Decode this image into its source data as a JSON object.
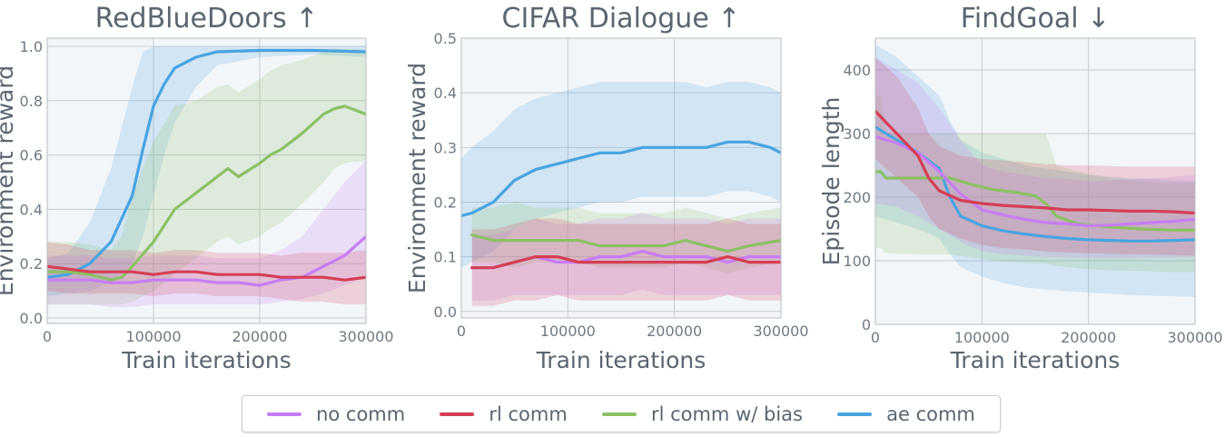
{
  "legend": {
    "items": [
      {
        "label": "no comm",
        "color": "#c77df3"
      },
      {
        "label": "rl comm",
        "color": "#d43f55"
      },
      {
        "label": "rl comm w/ bias",
        "color": "#8cc065"
      },
      {
        "label": "ae comm",
        "color": "#4aa3e0"
      }
    ]
  },
  "chart_data": [
    {
      "type": "line",
      "title": "RedBlueDoors ↑",
      "xlabel": "Train iterations",
      "ylabel": "Environment reward",
      "xlim": [
        0,
        300000
      ],
      "ylim": [
        -0.02,
        1.03
      ],
      "xticks": [
        0,
        100000,
        200000,
        300000
      ],
      "yticks": [
        0.0,
        0.2,
        0.4,
        0.6,
        0.8,
        1.0
      ],
      "ytick_labels": [
        "0.0",
        "0.2",
        "0.4",
        "0.6",
        "0.8",
        "1.0"
      ],
      "grid": true,
      "series": [
        {
          "name": "no comm",
          "color": "#c77df3",
          "x": [
            0,
            20000,
            40000,
            60000,
            80000,
            100000,
            120000,
            140000,
            160000,
            180000,
            200000,
            220000,
            240000,
            260000,
            280000,
            300000
          ],
          "y": [
            0.14,
            0.14,
            0.14,
            0.13,
            0.13,
            0.14,
            0.14,
            0.14,
            0.13,
            0.13,
            0.12,
            0.14,
            0.15,
            0.19,
            0.23,
            0.3
          ],
          "lower": [
            0.05,
            0.05,
            0.05,
            0.04,
            0.04,
            0.05,
            0.05,
            0.05,
            0.05,
            0.05,
            0.05,
            0.06,
            0.07,
            0.09,
            0.12,
            0.15
          ],
          "upper": [
            0.23,
            0.23,
            0.23,
            0.22,
            0.22,
            0.23,
            0.23,
            0.23,
            0.22,
            0.22,
            0.22,
            0.25,
            0.3,
            0.4,
            0.5,
            0.58
          ]
        },
        {
          "name": "rl comm",
          "color": "#d43f55",
          "x": [
            0,
            20000,
            40000,
            60000,
            80000,
            100000,
            120000,
            140000,
            160000,
            180000,
            200000,
            220000,
            240000,
            260000,
            280000,
            300000
          ],
          "y": [
            0.19,
            0.18,
            0.17,
            0.17,
            0.17,
            0.16,
            0.17,
            0.17,
            0.16,
            0.16,
            0.16,
            0.15,
            0.15,
            0.15,
            0.14,
            0.15
          ],
          "lower": [
            0.1,
            0.09,
            0.09,
            0.09,
            0.09,
            0.08,
            0.09,
            0.09,
            0.08,
            0.08,
            0.08,
            0.07,
            0.06,
            0.06,
            0.05,
            0.05
          ],
          "upper": [
            0.28,
            0.27,
            0.25,
            0.25,
            0.25,
            0.24,
            0.25,
            0.25,
            0.24,
            0.24,
            0.24,
            0.23,
            0.24,
            0.24,
            0.24,
            0.25
          ]
        },
        {
          "name": "rl comm w/ bias",
          "color": "#8cc065",
          "x": [
            0,
            20000,
            40000,
            60000,
            70000,
            80000,
            100000,
            120000,
            140000,
            160000,
            170000,
            180000,
            200000,
            210000,
            220000,
            240000,
            260000,
            270000,
            280000,
            300000
          ],
          "y": [
            0.17,
            0.17,
            0.16,
            0.14,
            0.15,
            0.19,
            0.28,
            0.4,
            0.46,
            0.52,
            0.55,
            0.52,
            0.57,
            0.6,
            0.62,
            0.68,
            0.75,
            0.77,
            0.78,
            0.75
          ],
          "lower": [
            0.05,
            0.05,
            0.05,
            0.05,
            0.05,
            0.06,
            0.1,
            0.16,
            0.22,
            0.28,
            0.3,
            0.27,
            0.3,
            0.33,
            0.35,
            0.42,
            0.5,
            0.55,
            0.57,
            0.58
          ],
          "upper": [
            0.28,
            0.28,
            0.27,
            0.25,
            0.3,
            0.45,
            0.65,
            0.78,
            0.8,
            0.85,
            0.86,
            0.83,
            0.88,
            0.91,
            0.93,
            0.95,
            0.98,
            0.99,
            0.99,
            0.99
          ]
        },
        {
          "name": "ae comm",
          "color": "#4aa3e0",
          "x": [
            0,
            20000,
            40000,
            60000,
            80000,
            90000,
            100000,
            110000,
            120000,
            140000,
            160000,
            200000,
            250000,
            300000
          ],
          "y": [
            0.15,
            0.16,
            0.2,
            0.28,
            0.45,
            0.62,
            0.78,
            0.86,
            0.92,
            0.96,
            0.98,
            0.985,
            0.985,
            0.98
          ],
          "lower": [
            0.08,
            0.09,
            0.1,
            0.13,
            0.2,
            0.3,
            0.45,
            0.6,
            0.72,
            0.85,
            0.93,
            0.96,
            0.97,
            0.96
          ],
          "upper": [
            0.22,
            0.24,
            0.35,
            0.55,
            0.85,
            0.98,
            1.0,
            1.0,
            1.0,
            1.0,
            1.0,
            1.0,
            1.0,
            1.0
          ]
        }
      ]
    },
    {
      "type": "line",
      "title": "CIFAR Dialogue ↑",
      "xlabel": "Train iterations",
      "ylabel": "Environment reward",
      "xlim": [
        0,
        300000
      ],
      "ylim": [
        -0.012,
        0.5
      ],
      "xticks": [
        0,
        100000,
        200000,
        300000
      ],
      "yticks": [
        0.0,
        0.1,
        0.2,
        0.3,
        0.4,
        0.5
      ],
      "ytick_labels": [
        "0.0",
        "0.1",
        "0.2",
        "0.3",
        "0.4",
        "0.5"
      ],
      "grid": true,
      "series": [
        {
          "name": "no comm",
          "color": "#c77df3",
          "x": [
            10000,
            30000,
            50000,
            70000,
            90000,
            110000,
            130000,
            150000,
            170000,
            190000,
            210000,
            230000,
            250000,
            270000,
            300000
          ],
          "y": [
            0.08,
            0.08,
            0.09,
            0.1,
            0.09,
            0.09,
            0.1,
            0.1,
            0.11,
            0.1,
            0.1,
            0.1,
            0.09,
            0.1,
            0.1
          ],
          "lower": [
            0.02,
            0.02,
            0.03,
            0.03,
            0.03,
            0.03,
            0.03,
            0.03,
            0.04,
            0.03,
            0.03,
            0.03,
            0.03,
            0.03,
            0.03
          ],
          "upper": [
            0.14,
            0.14,
            0.15,
            0.17,
            0.16,
            0.16,
            0.17,
            0.17,
            0.18,
            0.17,
            0.17,
            0.17,
            0.16,
            0.17,
            0.17
          ]
        },
        {
          "name": "rl comm",
          "color": "#d43f55",
          "x": [
            10000,
            30000,
            50000,
            70000,
            90000,
            110000,
            130000,
            150000,
            170000,
            190000,
            210000,
            230000,
            250000,
            270000,
            300000
          ],
          "y": [
            0.08,
            0.08,
            0.09,
            0.1,
            0.1,
            0.09,
            0.09,
            0.09,
            0.09,
            0.09,
            0.09,
            0.09,
            0.1,
            0.09,
            0.09
          ],
          "lower": [
            0.01,
            0.01,
            0.02,
            0.02,
            0.03,
            0.02,
            0.02,
            0.02,
            0.02,
            0.02,
            0.02,
            0.02,
            0.03,
            0.02,
            0.02
          ],
          "upper": [
            0.15,
            0.15,
            0.16,
            0.17,
            0.17,
            0.16,
            0.16,
            0.16,
            0.16,
            0.16,
            0.16,
            0.16,
            0.17,
            0.16,
            0.16
          ]
        },
        {
          "name": "rl comm w/ bias",
          "color": "#8cc065",
          "x": [
            10000,
            30000,
            50000,
            70000,
            90000,
            110000,
            130000,
            150000,
            170000,
            190000,
            210000,
            230000,
            250000,
            270000,
            300000
          ],
          "y": [
            0.14,
            0.13,
            0.13,
            0.13,
            0.13,
            0.13,
            0.12,
            0.12,
            0.12,
            0.12,
            0.13,
            0.12,
            0.11,
            0.12,
            0.13
          ],
          "lower": [
            0.09,
            0.09,
            0.08,
            0.09,
            0.09,
            0.09,
            0.08,
            0.08,
            0.08,
            0.08,
            0.09,
            0.08,
            0.07,
            0.08,
            0.09
          ],
          "upper": [
            0.19,
            0.19,
            0.2,
            0.19,
            0.19,
            0.19,
            0.18,
            0.18,
            0.18,
            0.18,
            0.19,
            0.18,
            0.17,
            0.18,
            0.19
          ]
        },
        {
          "name": "ae comm",
          "color": "#4aa3e0",
          "x": [
            0,
            10000,
            30000,
            50000,
            70000,
            90000,
            110000,
            130000,
            150000,
            170000,
            190000,
            210000,
            230000,
            250000,
            270000,
            290000,
            300000
          ],
          "y": [
            0.175,
            0.18,
            0.2,
            0.24,
            0.26,
            0.27,
            0.28,
            0.29,
            0.29,
            0.3,
            0.3,
            0.3,
            0.3,
            0.31,
            0.31,
            0.3,
            0.29
          ],
          "lower": [
            0.08,
            0.09,
            0.11,
            0.15,
            0.17,
            0.18,
            0.19,
            0.2,
            0.2,
            0.21,
            0.21,
            0.21,
            0.21,
            0.22,
            0.22,
            0.21,
            0.2
          ],
          "upper": [
            0.28,
            0.3,
            0.33,
            0.37,
            0.39,
            0.4,
            0.41,
            0.42,
            0.42,
            0.42,
            0.42,
            0.42,
            0.41,
            0.42,
            0.42,
            0.41,
            0.4
          ]
        }
      ]
    },
    {
      "type": "line",
      "title": "FindGoal ↓",
      "xlabel": "Train iterations",
      "ylabel": "Episode length",
      "xlim": [
        0,
        300000
      ],
      "ylim": [
        0,
        450
      ],
      "xticks": [
        0,
        100000,
        200000,
        300000
      ],
      "yticks": [
        0,
        100,
        200,
        300,
        400
      ],
      "ytick_labels": [
        "0",
        "100",
        "200",
        "300",
        "400"
      ],
      "grid": true,
      "series": [
        {
          "name": "no comm",
          "color": "#c77df3",
          "x": [
            0,
            20000,
            40000,
            60000,
            80000,
            100000,
            120000,
            140000,
            160000,
            180000,
            200000,
            220000,
            240000,
            260000,
            280000,
            300000
          ],
          "y": [
            295,
            285,
            270,
            240,
            205,
            180,
            172,
            165,
            160,
            158,
            155,
            156,
            158,
            160,
            162,
            165
          ],
          "lower": [
            190,
            185,
            170,
            150,
            130,
            115,
            110,
            108,
            106,
            105,
            104,
            104,
            104,
            105,
            105,
            106
          ],
          "upper": [
            420,
            400,
            380,
            340,
            290,
            250,
            240,
            235,
            230,
            228,
            225,
            226,
            228,
            230,
            232,
            235
          ]
        },
        {
          "name": "rl comm",
          "color": "#d43f55",
          "x": [
            0,
            20000,
            40000,
            50000,
            60000,
            80000,
            100000,
            120000,
            140000,
            160000,
            180000,
            200000,
            220000,
            240000,
            260000,
            280000,
            300000
          ],
          "y": [
            335,
            300,
            265,
            230,
            210,
            195,
            190,
            187,
            185,
            183,
            180,
            180,
            179,
            178,
            178,
            177,
            175
          ],
          "lower": [
            260,
            230,
            200,
            170,
            150,
            135,
            125,
            120,
            118,
            115,
            113,
            112,
            111,
            110,
            110,
            109,
            108
          ],
          "upper": [
            420,
            390,
            340,
            300,
            280,
            265,
            260,
            258,
            255,
            252,
            250,
            250,
            249,
            248,
            248,
            248,
            248
          ]
        },
        {
          "name": "rl comm w/ bias",
          "color": "#8cc065",
          "x": [
            0,
            5000,
            10000,
            40000,
            70000,
            90000,
            110000,
            130000,
            150000,
            160000,
            170000,
            190000,
            220000,
            250000,
            280000,
            300000
          ],
          "y": [
            240,
            240,
            230,
            230,
            230,
            220,
            212,
            208,
            202,
            190,
            170,
            158,
            153,
            150,
            148,
            148
          ],
          "lower": [
            120,
            120,
            112,
            110,
            110,
            105,
            100,
            98,
            96,
            95,
            92,
            88,
            85,
            84,
            82,
            82
          ],
          "upper": [
            360,
            360,
            300,
            300,
            300,
            300,
            300,
            300,
            300,
            300,
            250,
            240,
            230,
            225,
            222,
            222
          ]
        },
        {
          "name": "ae comm",
          "color": "#4aa3e0",
          "x": [
            0,
            20000,
            40000,
            60000,
            70000,
            80000,
            100000,
            120000,
            140000,
            160000,
            180000,
            200000,
            220000,
            240000,
            260000,
            280000,
            300000
          ],
          "y": [
            310,
            290,
            270,
            245,
            200,
            170,
            155,
            147,
            142,
            138,
            135,
            133,
            132,
            131,
            131,
            132,
            133
          ],
          "lower": [
            170,
            160,
            150,
            135,
            110,
            90,
            75,
            65,
            58,
            55,
            52,
            50,
            48,
            46,
            45,
            44,
            43
          ],
          "upper": [
            440,
            420,
            390,
            360,
            320,
            290,
            270,
            260,
            250,
            245,
            240,
            235,
            232,
            230,
            228,
            226,
            225
          ]
        }
      ]
    }
  ]
}
